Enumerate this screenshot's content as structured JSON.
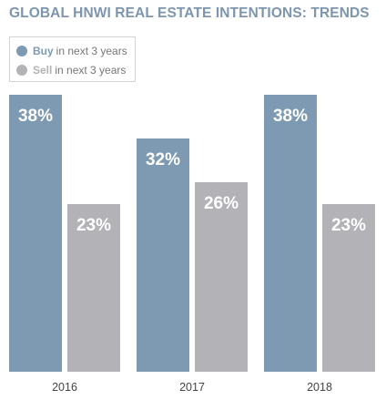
{
  "colors": {
    "title": "#7d95ae",
    "buy": "#7e9ab3",
    "sell": "#b3b3b7"
  },
  "chart_data": {
    "type": "bar",
    "title": "GLOBAL HNWI REAL ESTATE INTENTIONS: TRENDS",
    "categories": [
      "2016",
      "2017",
      "2018"
    ],
    "series": [
      {
        "name": "Buy",
        "legend_suffix": "in next 3 years",
        "values": [
          38,
          32,
          38
        ],
        "labels": [
          "38%",
          "32%",
          "38%"
        ]
      },
      {
        "name": "Sell",
        "legend_suffix": "in next 3 years",
        "values": [
          23,
          26,
          23
        ],
        "labels": [
          "23%",
          "26%",
          "23%"
        ]
      }
    ],
    "ylim": [
      0,
      51
    ],
    "grid": false,
    "legend_position": "top-left"
  }
}
